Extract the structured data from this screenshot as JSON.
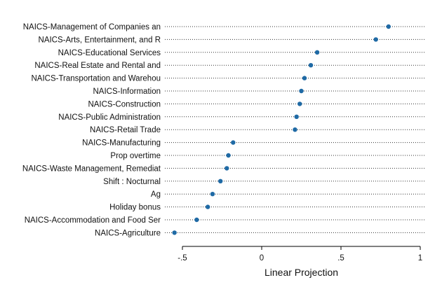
{
  "chart_data": {
    "type": "scatter",
    "style": "dot-plot",
    "xlabel": "Linear Projection",
    "xlim": [
      -0.55,
      1.0
    ],
    "xticks": [
      -0.5,
      0,
      0.5,
      1
    ],
    "xtick_labels": [
      "-.5",
      "0",
      ".5",
      "1"
    ],
    "grid": "dotted horizontal guide per category",
    "marker_color": "#1f6aa5",
    "categories": [
      "NAICS-Management of Companies an",
      "NAICS-Arts, Entertainment, and R",
      "NAICS-Educational Services",
      "NAICS-Real Estate and Rental and",
      "NAICS-Transportation and Warehou",
      "NAICS-Information",
      "NAICS-Construction",
      "NAICS-Public Administration",
      "NAICS-Retail Trade",
      "NAICS-Manufacturing",
      "Prop overtime",
      "NAICS-Waste Management, Remediat",
      "Shift : Nocturnal",
      "Ag",
      "Holiday bonus",
      "NAICS-Accommodation and Food Ser",
      "NAICS-Agriculture"
    ],
    "values": [
      0.8,
      0.72,
      0.35,
      0.31,
      0.27,
      0.25,
      0.24,
      0.22,
      0.21,
      -0.18,
      -0.21,
      -0.22,
      -0.26,
      -0.31,
      -0.34,
      -0.41,
      -0.55
    ]
  }
}
